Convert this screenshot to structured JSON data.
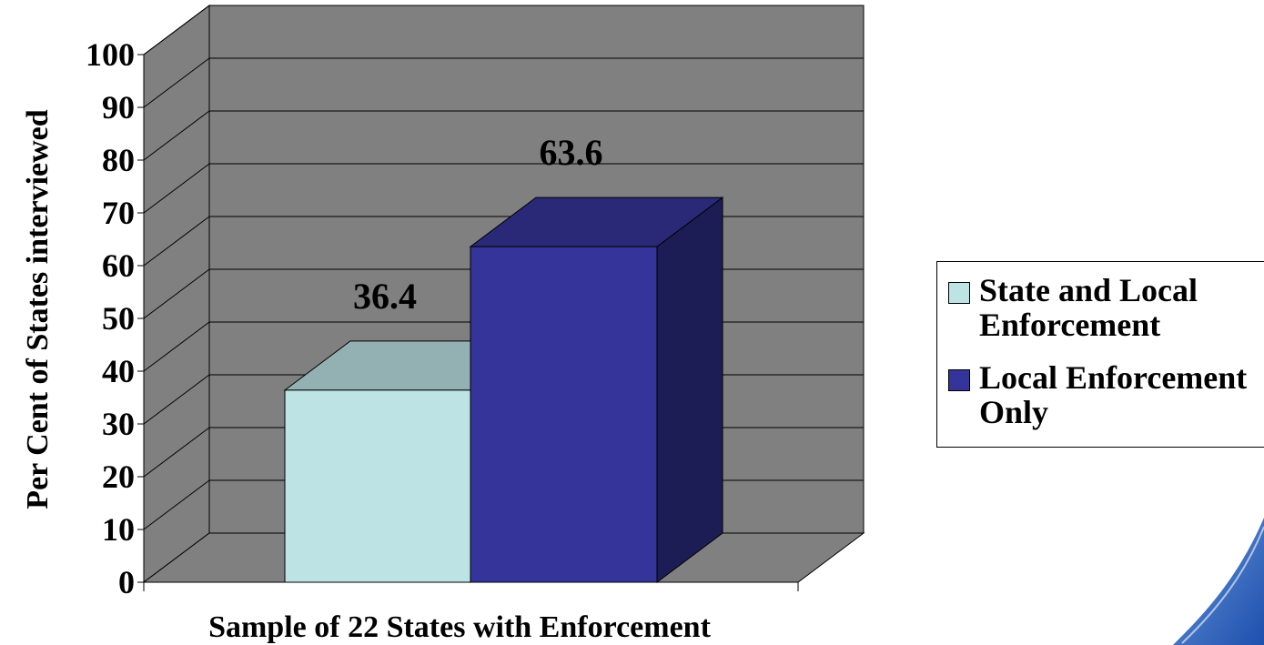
{
  "chart_data": {
    "type": "bar",
    "categories": [
      "Sample of 22 States with Enforcement"
    ],
    "series": [
      {
        "name": "State and Local Enforcement",
        "values": [
          36.4
        ],
        "color": "#bde3e5"
      },
      {
        "name": "Local Enforcement Only",
        "values": [
          63.6
        ],
        "color": "#34349a"
      }
    ],
    "title": "",
    "xlabel": "Sample of 22 States with Enforcement",
    "ylabel": "Per Cent of States interviewed",
    "ylim": [
      0,
      100
    ],
    "yticks": [
      0,
      10,
      20,
      30,
      40,
      50,
      60,
      70,
      80,
      90,
      100
    ],
    "data_labels": [
      "36.4",
      "63.6"
    ],
    "grid": true,
    "style": "3d",
    "legend_position": "right",
    "wall_color": "#808080"
  }
}
